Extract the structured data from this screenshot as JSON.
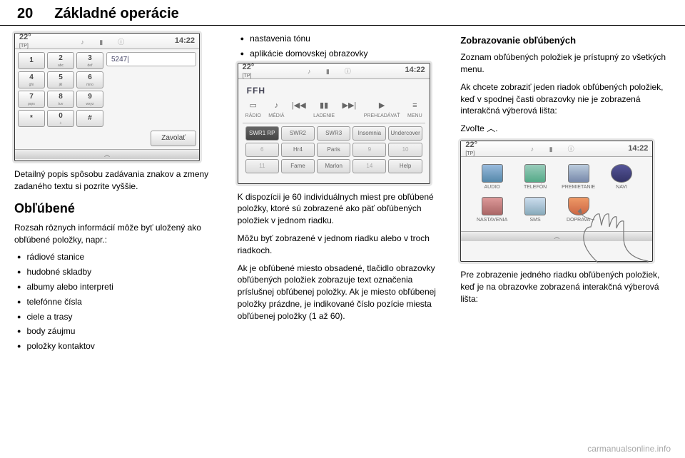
{
  "page": {
    "number": "20",
    "title": "Základné operácie"
  },
  "col1": {
    "screenshot1": {
      "temp": "22°",
      "tp": "[TP]",
      "time": "14:22",
      "display": "5247|",
      "keys": [
        {
          "n": "1",
          "s": ""
        },
        {
          "n": "2",
          "s": "abc"
        },
        {
          "n": "3",
          "s": "def"
        },
        {
          "n": "4",
          "s": "ghi"
        },
        {
          "n": "5",
          "s": "jkl"
        },
        {
          "n": "6",
          "s": "mno"
        },
        {
          "n": "7",
          "s": "pqrs"
        },
        {
          "n": "8",
          "s": "tuv"
        },
        {
          "n": "9",
          "s": "wxyz"
        },
        {
          "n": "*",
          "s": ""
        },
        {
          "n": "0",
          "s": "+"
        },
        {
          "n": "#",
          "s": ""
        }
      ],
      "call": "Zavolať",
      "chevron": "︿"
    },
    "p1": "Detailný popis spôsobu zadávania znakov a zmeny zadaného textu si pozrite vyššie.",
    "h2": "Obľúbené",
    "p2": "Rozsah rôznych informácií môže byť uložený ako obľúbené položky, napr.:",
    "list": [
      "rádiové stanice",
      "hudobné skladby",
      "albumy alebo interpreti",
      "telefónne čísla",
      "ciele a trasy",
      "body záujmu",
      "položky kontaktov"
    ]
  },
  "col2": {
    "bulletsTop": [
      "nastavenia tónu",
      "aplikácie domovskej obrazovky"
    ],
    "screenshot2": {
      "temp": "22°",
      "tp": "[TP]",
      "time": "14:22",
      "station": "FFH",
      "controls": [
        {
          "g": "▭",
          "l": "RÁDIO"
        },
        {
          "g": "♪",
          "l": "MÉDIÁ"
        },
        {
          "g": "|◀◀",
          "l": ""
        },
        {
          "g": "▮▮",
          "l": "LADENIE"
        },
        {
          "g": "▶▶|",
          "l": ""
        },
        {
          "g": "▶",
          "l": "PREHĽADÁVAŤ"
        },
        {
          "g": "≡",
          "l": "MENU"
        }
      ],
      "favs": [
        {
          "t": "SWR1 RP",
          "a": true
        },
        {
          "t": "SWR2"
        },
        {
          "t": "SWR3"
        },
        {
          "t": "Insomnia"
        },
        {
          "t": "Undercover"
        },
        {
          "t": "6",
          "d": true
        },
        {
          "t": "Hr4"
        },
        {
          "t": "Paris"
        },
        {
          "t": "9",
          "d": true
        },
        {
          "t": "10",
          "d": true
        },
        {
          "t": "11",
          "d": true
        },
        {
          "t": "Fame"
        },
        {
          "t": "Marlon"
        },
        {
          "t": "14",
          "d": true
        },
        {
          "t": "Help"
        }
      ]
    },
    "p1": "K dispozícii je 60 individuálnych miest pre obľúbené položky, ktoré sú zobrazené ako päť obľúbených položiek v jednom riadku.",
    "p2": "Môžu byť zobrazené v jednom riadku alebo v troch riadkoch.",
    "p3": "Ak je obľúbené miesto obsadené, tlačidlo obrazovky obľúbených položiek zobrazuje text označenia príslušnej obľúbenej položky. Ak je miesto obľúbenej položky prázdne, je indikované číslo pozície miesta obľúbenej položky (1 až 60)."
  },
  "col3": {
    "h3": "Zobrazovanie obľúbených",
    "p1": "Zoznam obľúbených položiek je prístupný zo všetkých menu.",
    "p2": "Ak chcete zobraziť jeden riadok obľúbených položiek, keď v spodnej časti obrazovky nie je zobrazená interakčná výberová lišta:",
    "p3": "Zvoľte ︿.",
    "screenshot3": {
      "temp": "22°",
      "tp": "[TP]",
      "time": "14:22",
      "apps": [
        "AUDIO",
        "TELEFÓN",
        "PREMIETANIE",
        "NAVI",
        "NASTAVENIA",
        "SMS",
        "DOPRAVA"
      ],
      "chevron": "︿"
    },
    "p4": "Pre zobrazenie jedného riadku obľúbených položiek, keď je na obrazovke zobrazená interakčná výberová lišta:"
  },
  "footer": "carmanualsonline.info"
}
